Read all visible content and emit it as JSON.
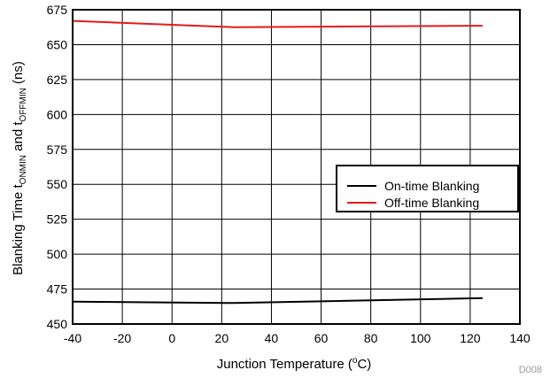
{
  "figure_id": "D008",
  "chart_data": {
    "type": "line",
    "title": "",
    "xlabel_parts": [
      "Junction Temperature (",
      "o",
      "C)"
    ],
    "ylabel_parts": [
      "Blanking Time t",
      "ONMIN",
      " and t",
      "OFFMIN",
      " (ns)"
    ],
    "xlim": [
      -40,
      140
    ],
    "ylim": [
      450,
      675
    ],
    "xticks": [
      "-40",
      "-20",
      "0",
      "20",
      "40",
      "60",
      "80",
      "100",
      "120",
      "140"
    ],
    "yticks": [
      "450",
      "475",
      "500",
      "525",
      "550",
      "575",
      "600",
      "625",
      "650",
      "675"
    ],
    "grid": true,
    "legend_position": "center-right",
    "series": [
      {
        "name": "On-time Blanking",
        "color": "#000000",
        "x": [
          -40,
          25,
          125
        ],
        "y": [
          466,
          465,
          468.5
        ]
      },
      {
        "name": "Off-time Blanking",
        "color": "#e31a1c",
        "x": [
          -40,
          25,
          125
        ],
        "y": [
          667,
          662.5,
          663.5
        ]
      }
    ]
  }
}
